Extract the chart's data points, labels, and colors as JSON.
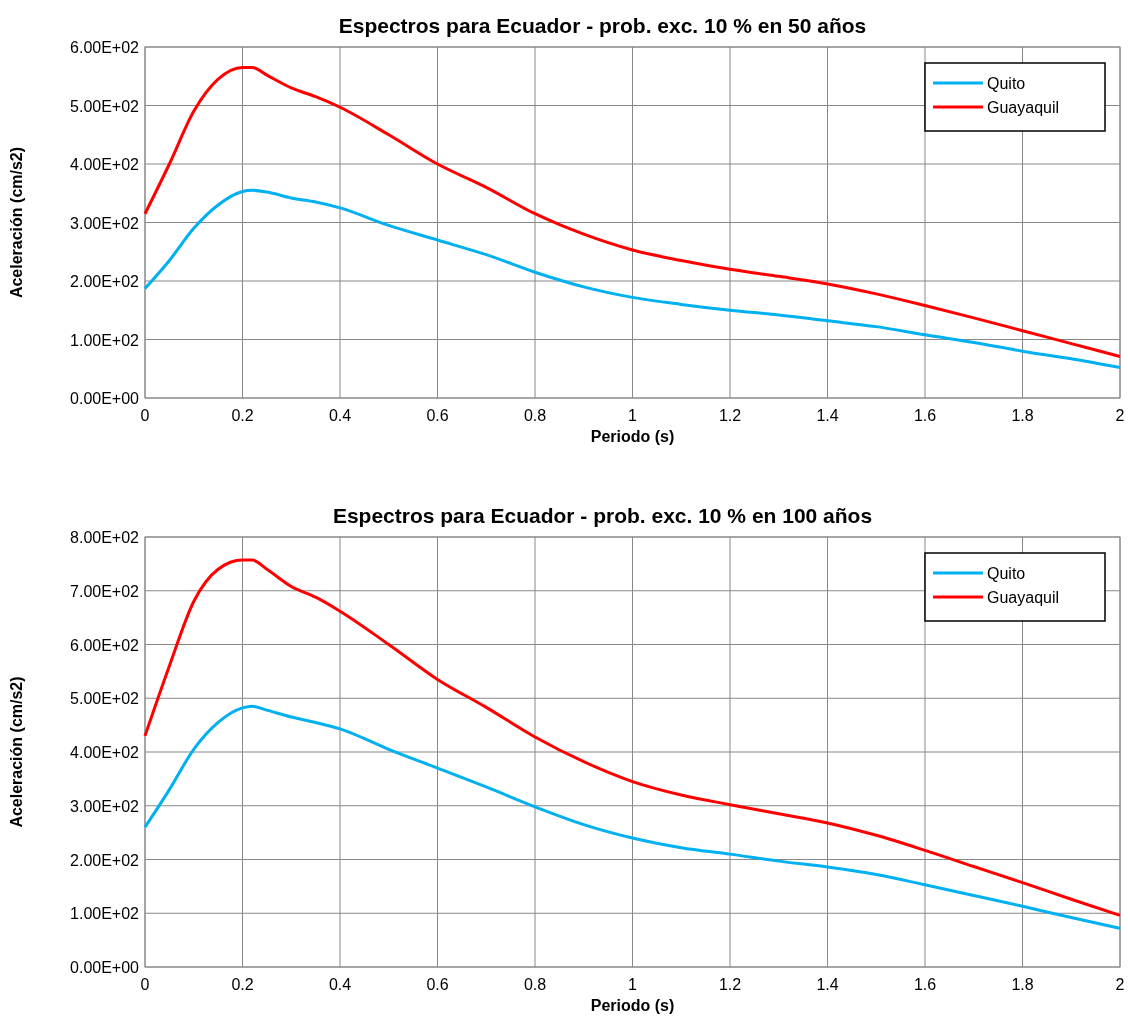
{
  "chart_data": [
    {
      "type": "line",
      "title": "Espectros para Ecuador - prob. exc. 10 % en 50 años",
      "xlabel": "Periodo (s)",
      "ylabel": "Aceleración (cm/s2)",
      "x": [
        0,
        0.05,
        0.1,
        0.15,
        0.2,
        0.22,
        0.25,
        0.3,
        0.35,
        0.4,
        0.5,
        0.6,
        0.7,
        0.8,
        0.9,
        1.0,
        1.1,
        1.2,
        1.3,
        1.4,
        1.5,
        1.6,
        1.7,
        1.8,
        1.9,
        2.0
      ],
      "series": [
        {
          "name": "Quito",
          "color": "#00b0f0",
          "values": [
            187,
            235,
            290,
            330,
            353,
            355,
            352,
            342,
            335,
            325,
            295,
            270,
            245,
            215,
            190,
            172,
            160,
            150,
            142,
            132,
            122,
            108,
            95,
            80,
            67,
            52
          ]
        },
        {
          "name": "Guayaquil",
          "color": "#ff0000",
          "values": [
            315,
            400,
            490,
            545,
            565,
            565,
            552,
            530,
            515,
            497,
            450,
            400,
            360,
            315,
            280,
            253,
            235,
            220,
            208,
            195,
            178,
            158,
            137,
            115,
            93,
            71
          ]
        }
      ],
      "xlim": [
        0,
        2
      ],
      "xticks": [
        0,
        0.2,
        0.4,
        0.6,
        0.8,
        1,
        1.2,
        1.4,
        1.6,
        1.8,
        2
      ],
      "ylim": [
        0,
        600
      ],
      "yticks": [
        {
          "value": 0,
          "label": "0.00E+00"
        },
        {
          "value": 100,
          "label": "1.00E+02"
        },
        {
          "value": 200,
          "label": "2.00E+02"
        },
        {
          "value": 300,
          "label": "3.00E+02"
        },
        {
          "value": 400,
          "label": "4.00E+02"
        },
        {
          "value": 500,
          "label": "5.00E+02"
        },
        {
          "value": 600,
          "label": "6.00E+02"
        }
      ],
      "grid": true,
      "legend": "top right",
      "marker": "none",
      "line_style": "solid"
    },
    {
      "type": "line",
      "title": "Espectros para Ecuador - prob. exc. 10 % en 100 años",
      "xlabel": "Periodo (s)",
      "ylabel": "Aceleración (cm/s2)",
      "x": [
        0,
        0.05,
        0.1,
        0.15,
        0.2,
        0.22,
        0.25,
        0.3,
        0.35,
        0.4,
        0.5,
        0.6,
        0.7,
        0.8,
        0.9,
        1.0,
        1.1,
        1.2,
        1.3,
        1.4,
        1.5,
        1.6,
        1.7,
        1.8,
        1.9,
        2.0
      ],
      "series": [
        {
          "name": "Quito",
          "color": "#00b0f0",
          "values": [
            260,
            330,
            405,
            455,
            482,
            485,
            478,
            465,
            455,
            443,
            405,
            370,
            335,
            298,
            265,
            240,
            222,
            210,
            197,
            186,
            172,
            153,
            133,
            113,
            92,
            72
          ]
        },
        {
          "name": "Guayaquil",
          "color": "#ff0000",
          "values": [
            430,
            560,
            680,
            740,
            757,
            757,
            740,
            708,
            688,
            662,
            600,
            535,
            483,
            428,
            382,
            345,
            320,
            302,
            285,
            268,
            245,
            217,
            187,
            157,
            126,
            96
          ]
        }
      ],
      "xlim": [
        0,
        2
      ],
      "xticks": [
        0,
        0.2,
        0.4,
        0.6,
        0.8,
        1,
        1.2,
        1.4,
        1.6,
        1.8,
        2
      ],
      "ylim": [
        0,
        800
      ],
      "yticks": [
        {
          "value": 0,
          "label": "0.00E+00"
        },
        {
          "value": 100,
          "label": "1.00E+02"
        },
        {
          "value": 200,
          "label": "2.00E+02"
        },
        {
          "value": 300,
          "label": "3.00E+02"
        },
        {
          "value": 400,
          "label": "4.00E+02"
        },
        {
          "value": 500,
          "label": "5.00E+02"
        },
        {
          "value": 600,
          "label": "6.00E+02"
        },
        {
          "value": 700,
          "label": "7.00E+02"
        },
        {
          "value": 800,
          "label": "8.00E+02"
        }
      ],
      "grid": true,
      "legend": "top right",
      "marker": "none",
      "line_style": "solid"
    }
  ]
}
